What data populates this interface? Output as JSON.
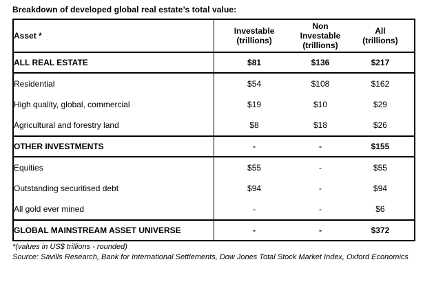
{
  "title": "Breakdown of developed global real estate’s total value:",
  "table": {
    "header": {
      "asset": "Asset *",
      "investable": "Investable\n(trillions)",
      "non_investable": "Non\nInvestable\n(trillions)",
      "all": "All\n(trillions)"
    },
    "rows": [
      {
        "asset": "ALL REAL ESTATE",
        "investable": "$81",
        "non_investable": "$136",
        "all": "$217",
        "bold": true,
        "rule_above": true
      },
      {
        "asset": "Residential",
        "investable": "$54",
        "non_investable": "$108",
        "all": "$162",
        "bold": false,
        "rule_above": true
      },
      {
        "asset": "High quality, global, commercial",
        "investable": "$19",
        "non_investable": "$10",
        "all": "$29",
        "bold": false,
        "rule_above": false
      },
      {
        "asset": "Agricultural and forestry land",
        "investable": "$8",
        "non_investable": "$18",
        "all": "$26",
        "bold": false,
        "rule_above": false
      },
      {
        "asset": "OTHER INVESTMENTS",
        "investable": "-",
        "non_investable": "-",
        "all": "$155",
        "bold": true,
        "rule_above": true
      },
      {
        "asset": "Equities",
        "investable": "$55",
        "non_investable": "-",
        "all": "$55",
        "bold": false,
        "rule_above": true
      },
      {
        "asset": "Outstanding securitised debt",
        "investable": "$94",
        "non_investable": "-",
        "all": "$94",
        "bold": false,
        "rule_above": false
      },
      {
        "asset": "All gold ever mined",
        "investable": "-",
        "non_investable": "-",
        "all": "$6",
        "bold": false,
        "rule_above": false
      },
      {
        "asset": "GLOBAL MAINSTREAM ASSET UNIVERSE",
        "investable": "-",
        "non_investable": "-",
        "all": "$372",
        "bold": true,
        "rule_above": true
      }
    ]
  },
  "footnotes": {
    "values_note": "*(values in US$ trillions - rounded)",
    "source": "Source: Savills Research, Bank for International Settlements, Dow Jones Total Stock Market Index, Oxford Economics"
  },
  "colors": {
    "text": "#000000",
    "border": "#000000",
    "background": "#ffffff"
  }
}
